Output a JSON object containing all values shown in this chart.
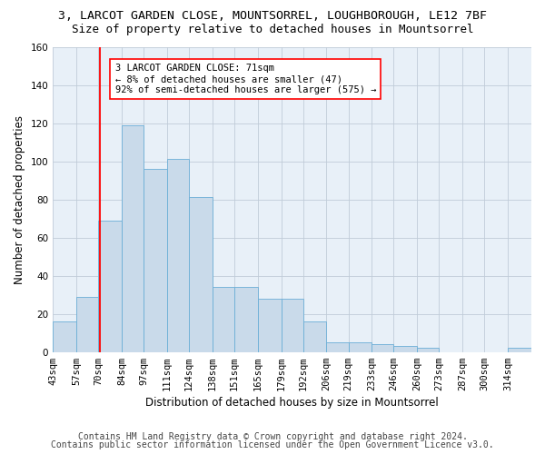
{
  "title_line1": "3, LARCOT GARDEN CLOSE, MOUNTSORREL, LOUGHBOROUGH, LE12 7BF",
  "title_line2": "Size of property relative to detached houses in Mountsorrel",
  "xlabel": "Distribution of detached houses by size in Mountsorrel",
  "ylabel": "Number of detached properties",
  "footer_line1": "Contains HM Land Registry data © Crown copyright and database right 2024.",
  "footer_line2": "Contains public sector information licensed under the Open Government Licence v3.0.",
  "bin_labels": [
    "43sqm",
    "57sqm",
    "70sqm",
    "84sqm",
    "97sqm",
    "111sqm",
    "124sqm",
    "138sqm",
    "151sqm",
    "165sqm",
    "179sqm",
    "192sqm",
    "206sqm",
    "219sqm",
    "233sqm",
    "246sqm",
    "260sqm",
    "273sqm",
    "287sqm",
    "300sqm",
    "314sqm"
  ],
  "bar_heights": [
    16,
    29,
    69,
    119,
    96,
    101,
    81,
    34,
    34,
    28,
    28,
    16,
    5,
    5,
    4,
    3,
    2,
    0,
    0,
    0,
    2
  ],
  "bar_color": "#c9daea",
  "bar_edge_color": "#6baed6",
  "bg_color": "#e8f0f8",
  "ylim": [
    0,
    160
  ],
  "yticks": [
    0,
    20,
    40,
    60,
    80,
    100,
    120,
    140,
    160
  ],
  "red_line_x": 71,
  "bin_edges": [
    43,
    57,
    70,
    84,
    97,
    111,
    124,
    138,
    151,
    165,
    179,
    192,
    206,
    219,
    233,
    246,
    260,
    273,
    287,
    300,
    314,
    328
  ],
  "annotation_text": "3 LARCOT GARDEN CLOSE: 71sqm\n← 8% of detached houses are smaller (47)\n92% of semi-detached houses are larger (575) →",
  "title_fontsize": 9.5,
  "subtitle_fontsize": 9,
  "axis_label_fontsize": 8.5,
  "tick_fontsize": 7.5,
  "footer_fontsize": 7,
  "annot_fontsize": 7.5
}
